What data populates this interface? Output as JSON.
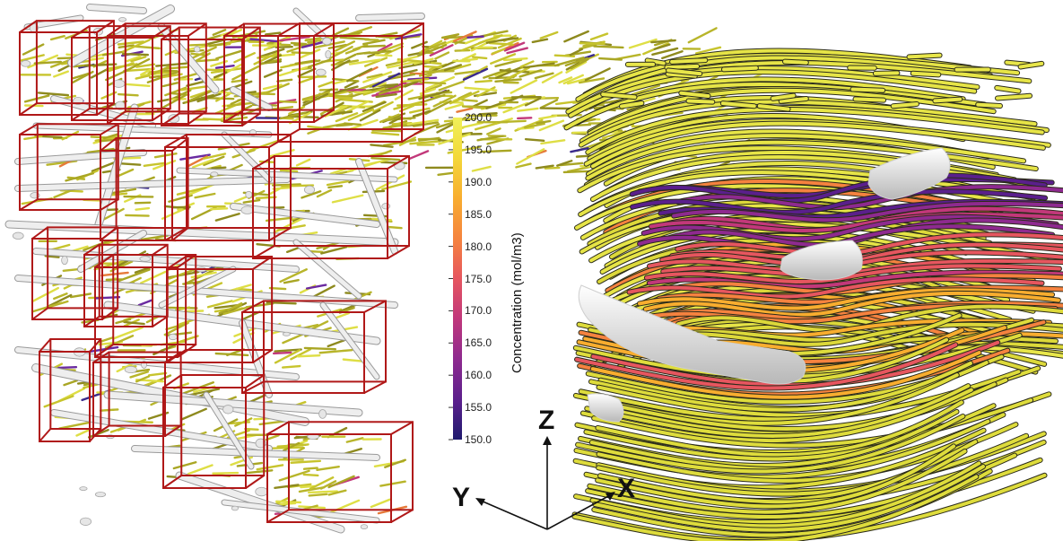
{
  "colorbar": {
    "title": "Concentration (mol/m3)",
    "ticks": [
      "200.0",
      "195.0",
      "190.0",
      "185.0",
      "180.0",
      "175.0",
      "170.0",
      "165.0",
      "160.0",
      "155.0",
      "150.0"
    ],
    "colors": [
      "#1f1a6e",
      "#5a1f8c",
      "#8e2a8f",
      "#c2387a",
      "#e6565f",
      "#f5823f",
      "#f8ad2f",
      "#f3d93a",
      "#f0f05a"
    ]
  },
  "axes": {
    "z": "Z",
    "y": "Y",
    "x": "X"
  },
  "palette": {
    "box_edge": "#b01818",
    "fiber": "#ececec",
    "streamline_high": "#d9d63a",
    "streamline_low": "#2b2b8f"
  }
}
